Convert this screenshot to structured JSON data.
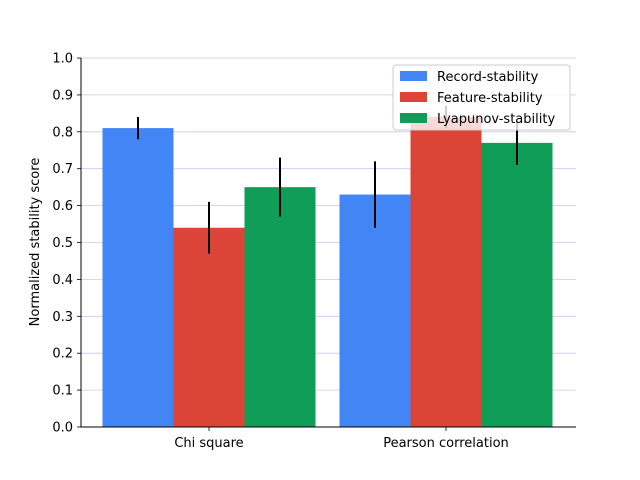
{
  "chart_data": {
    "type": "bar",
    "title": "",
    "xlabel": "",
    "ylabel": "Normalized stability score",
    "ylim": [
      0,
      1.0
    ],
    "yticks": [
      "0.0",
      "0.1",
      "0.2",
      "0.3",
      "0.4",
      "0.5",
      "0.6",
      "0.7",
      "0.8",
      "0.9",
      "1.0"
    ],
    "grid": true,
    "legend_position": "top-right",
    "categories": [
      "Chi square",
      "Pearson correlation"
    ],
    "series": [
      {
        "name": "Record-stability",
        "color": "#4285f4",
        "values": [
          0.81,
          0.63
        ],
        "errors": [
          0.03,
          0.09
        ]
      },
      {
        "name": "Feature-stability",
        "color": "#db4437",
        "values": [
          0.54,
          0.84
        ],
        "errors": [
          0.07,
          0.03
        ]
      },
      {
        "name": "Lyapunov-stability",
        "color": "#0f9d58",
        "values": [
          0.65,
          0.77
        ],
        "errors": [
          0.08,
          0.06
        ]
      }
    ]
  }
}
